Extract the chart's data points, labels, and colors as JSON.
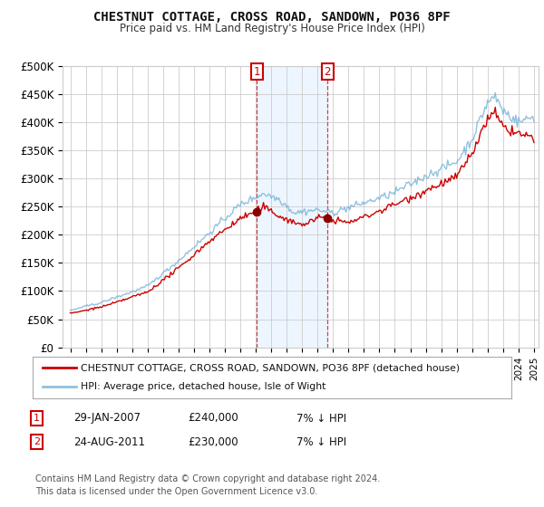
{
  "title": "CHESTNUT COTTAGE, CROSS ROAD, SANDOWN, PO36 8PF",
  "subtitle": "Price paid vs. HM Land Registry's House Price Index (HPI)",
  "ylabel_ticks": [
    "£0",
    "£50K",
    "£100K",
    "£150K",
    "£200K",
    "£250K",
    "£300K",
    "£350K",
    "£400K",
    "£450K",
    "£500K"
  ],
  "ylim": [
    0,
    500000
  ],
  "xlim_start": 1994.5,
  "xlim_end": 2025.3,
  "sale1_x": 2007.08,
  "sale1_y": 240000,
  "sale1_label": "1",
  "sale2_x": 2011.65,
  "sale2_y": 230000,
  "sale2_label": "2",
  "hpi_color": "#6baed6",
  "hpi_alpha": 0.75,
  "property_color": "#cc0000",
  "shade_color": "#ddeeff",
  "shade_alpha": 0.5,
  "legend_property": "CHESTNUT COTTAGE, CROSS ROAD, SANDOWN, PO36 8PF (detached house)",
  "legend_hpi": "HPI: Average price, detached house, Isle of Wight",
  "table_rows": [
    {
      "num": "1",
      "date": "29-JAN-2007",
      "price": "£240,000",
      "hpi": "7% ↓ HPI"
    },
    {
      "num": "2",
      "date": "24-AUG-2011",
      "price": "£230,000",
      "hpi": "7% ↓ HPI"
    }
  ],
  "footnote": "Contains HM Land Registry data © Crown copyright and database right 2024.\nThis data is licensed under the Open Government Licence v3.0.",
  "background_color": "#ffffff",
  "grid_color": "#cccccc"
}
